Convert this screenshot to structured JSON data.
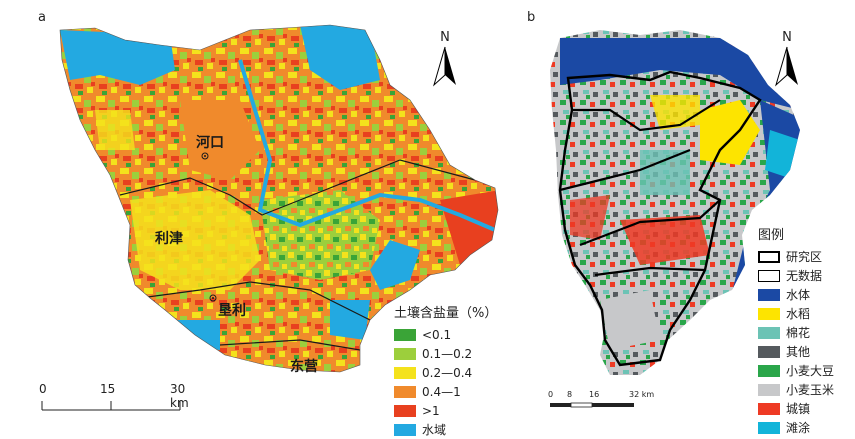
{
  "panels": {
    "a": {
      "label": "a",
      "north_letter": "N",
      "place_names": {
        "hekou": "河口",
        "lijin": "利津",
        "kenli": "垦利",
        "dongying": "东营"
      },
      "legend": {
        "title": "土壤含盐量（%）",
        "items": [
          {
            "label": "<0.1",
            "color": "#3aa437"
          },
          {
            "label": "0.1—0.2",
            "color": "#9ccf3c"
          },
          {
            "label": "0.2—0.4",
            "color": "#f4e21c"
          },
          {
            "label": "0.4—1",
            "color": "#f08a2c"
          },
          {
            "label": ">1",
            "color": "#e8401f"
          },
          {
            "label": "水域",
            "color": "#23a9e1"
          }
        ]
      },
      "scale": {
        "ticks": [
          "0",
          "15",
          "30 km"
        ]
      }
    },
    "b": {
      "label": "b",
      "north_letter": "N",
      "legend": {
        "title": "图例",
        "items": [
          {
            "label": "研究区",
            "color": "#000000",
            "style": "outline-thick"
          },
          {
            "label": "无数据",
            "color": "#ffffff",
            "style": "outline-thin"
          },
          {
            "label": "水体",
            "color": "#1b49a4"
          },
          {
            "label": "水稻",
            "color": "#fde400"
          },
          {
            "label": "棉花",
            "color": "#6cc3b5"
          },
          {
            "label": "其他",
            "color": "#555a5e"
          },
          {
            "label": "小麦大豆",
            "color": "#2aa64a"
          },
          {
            "label": "小麦玉米",
            "color": "#c7c8ca"
          },
          {
            "label": "城镇",
            "color": "#ee3a24"
          },
          {
            "label": "滩涂",
            "color": "#12b4d9"
          }
        ]
      },
      "scale": {
        "ticks": [
          "0",
          "8",
          "16",
          "32 km"
        ]
      }
    }
  }
}
